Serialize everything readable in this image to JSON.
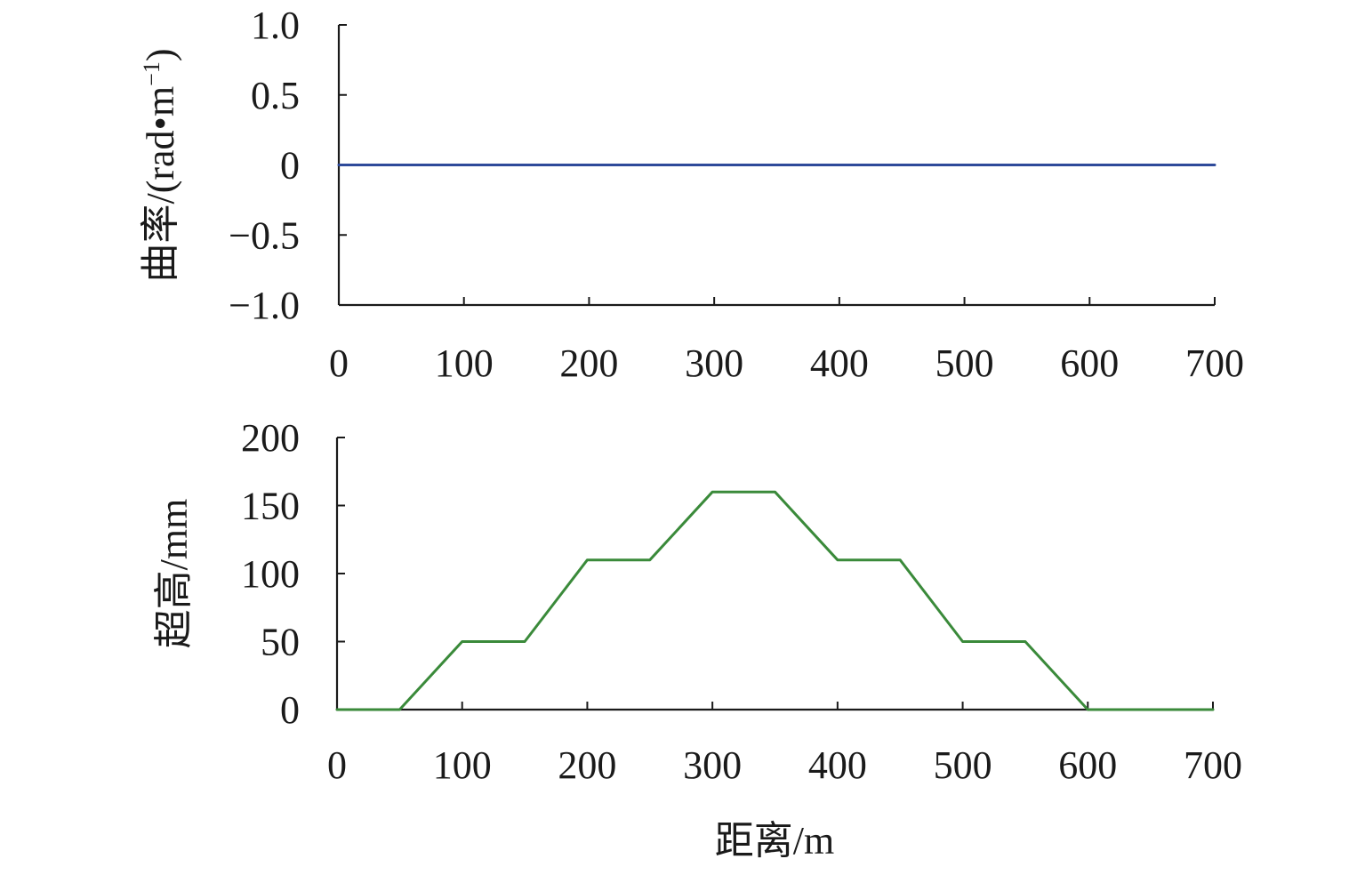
{
  "chart_data": [
    {
      "type": "line",
      "ylabel_main": "曲率/(rad•m",
      "ylabel_sup": "−1",
      "ylabel_close": ")",
      "xlim": [
        0,
        700
      ],
      "ylim": [
        -1.0,
        1.0
      ],
      "x_ticks": [
        "0",
        "100",
        "200",
        "300",
        "400",
        "500",
        "600",
        "700"
      ],
      "y_ticks": [
        "1.0",
        "0.5",
        "0",
        "−0.5",
        "−1.0"
      ],
      "x_tick_values": [
        0,
        100,
        200,
        300,
        400,
        500,
        600,
        700
      ],
      "y_tick_values": [
        1.0,
        0.5,
        0,
        -0.5,
        -1.0
      ],
      "grid": false,
      "series": [
        {
          "color": "#2e4a9a",
          "x": [
            0,
            700
          ],
          "y": [
            0,
            0
          ]
        }
      ]
    },
    {
      "type": "line",
      "ylabel": "超高/mm",
      "xlabel": "距离/m",
      "xlim": [
        0,
        700
      ],
      "ylim": [
        0,
        200
      ],
      "x_ticks": [
        "0",
        "100",
        "200",
        "300",
        "400",
        "500",
        "600",
        "700"
      ],
      "y_ticks": [
        "200",
        "150",
        "100",
        "50",
        "0"
      ],
      "x_tick_values": [
        0,
        100,
        200,
        300,
        400,
        500,
        600,
        700
      ],
      "y_tick_values": [
        200,
        150,
        100,
        50,
        0
      ],
      "grid": false,
      "series": [
        {
          "color": "#3a8a3a",
          "x": [
            0,
            50,
            100,
            150,
            200,
            250,
            300,
            350,
            400,
            450,
            500,
            550,
            600,
            700
          ],
          "y": [
            0,
            0,
            50,
            50,
            110,
            110,
            160,
            160,
            110,
            110,
            50,
            50,
            0,
            0
          ]
        }
      ]
    }
  ]
}
